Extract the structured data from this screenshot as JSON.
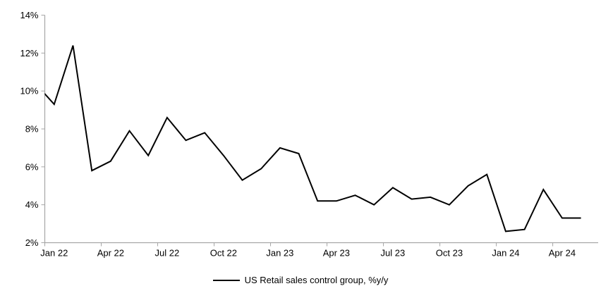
{
  "chart_data": {
    "type": "line",
    "title": "",
    "legend": "US Retail sales control group, %y/y",
    "legend_position": "bottom-center",
    "grid": false,
    "x_axis_note": "monthly data; first point (Dec 21) is clipped at the left plot edge",
    "x": [
      "Dec 21",
      "Jan 22",
      "Feb 22",
      "Mar 22",
      "Apr 22",
      "May 22",
      "Jun 22",
      "Jul 22",
      "Aug 22",
      "Sep 22",
      "Oct 22",
      "Nov 22",
      "Dec 22",
      "Jan 23",
      "Feb 23",
      "Mar 23",
      "Apr 23",
      "May 23",
      "Jun 23",
      "Jul 23",
      "Aug 23",
      "Sep 23",
      "Oct 23",
      "Nov 23",
      "Dec 23",
      "Jan 24",
      "Feb 24",
      "Mar 24",
      "Apr 24",
      "May 24"
    ],
    "values": [
      10.4,
      9.3,
      12.4,
      5.8,
      6.3,
      7.9,
      6.6,
      8.6,
      7.4,
      7.8,
      6.6,
      5.3,
      5.9,
      7.0,
      6.7,
      4.2,
      4.2,
      4.5,
      4.0,
      4.9,
      4.3,
      4.4,
      4.0,
      5.0,
      5.6,
      2.6,
      2.7,
      4.8,
      3.3,
      3.3
    ],
    "ylim": [
      2,
      14
    ],
    "y_ticks": [
      {
        "value": 14,
        "label": "14%"
      },
      {
        "value": 12,
        "label": "12%"
      },
      {
        "value": 10,
        "label": "10%"
      },
      {
        "value": 8,
        "label": "8%"
      },
      {
        "value": 6,
        "label": "6%"
      },
      {
        "value": 4,
        "label": "4%"
      },
      {
        "value": 2,
        "label": "2%"
      }
    ],
    "x_tick_labels": [
      "Jan 22",
      "Apr 22",
      "Jul 22",
      "Oct 22",
      "Jan 23",
      "Apr 23",
      "Jul 23",
      "Oct 23",
      "Jan 24",
      "Apr 24"
    ],
    "line_color": "#000000",
    "axis_color": "#a6a6a6",
    "text_color": "#000000"
  }
}
